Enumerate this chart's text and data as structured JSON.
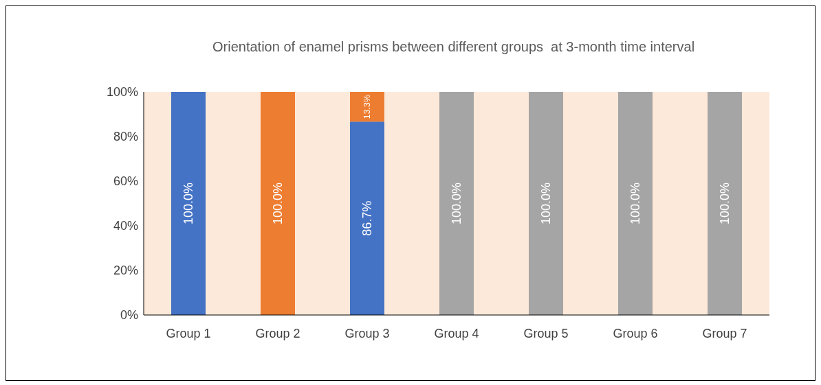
{
  "chart_data": {
    "type": "bar",
    "title": "Orientation of enamel prisms between different groups  at 3-month time interval",
    "stacked": true,
    "categories": [
      "Group 1",
      "Group 2",
      "Group 3",
      "Group 4",
      "Group 5",
      "Group 6",
      "Group 7"
    ],
    "series": [
      {
        "color": "#4472c4",
        "values": [
          100,
          0,
          86.7,
          0,
          0,
          0,
          0
        ],
        "value_labels": [
          "100.0%",
          null,
          "86.7%",
          null,
          null,
          null,
          null
        ]
      },
      {
        "color": "#ed7d31",
        "values": [
          0,
          100,
          13.3,
          0,
          0,
          0,
          0
        ],
        "value_labels": [
          null,
          "100.0%",
          "13.3%",
          null,
          null,
          null,
          null
        ]
      },
      {
        "color": "#a5a5a5",
        "values": [
          0,
          0,
          0,
          100,
          100,
          100,
          100
        ],
        "value_labels": [
          null,
          null,
          null,
          "100.0%",
          "100.0%",
          "100.0%",
          "100.0%"
        ]
      }
    ],
    "ylim": [
      0,
      100
    ],
    "yticks": [
      {
        "value": 0,
        "label": "0%"
      },
      {
        "value": 20,
        "label": "20%"
      },
      {
        "value": 40,
        "label": "40%"
      },
      {
        "value": 60,
        "label": "60%"
      },
      {
        "value": 80,
        "label": "80%"
      },
      {
        "value": 100,
        "label": "100%"
      }
    ],
    "grid": false,
    "legend": false
  }
}
